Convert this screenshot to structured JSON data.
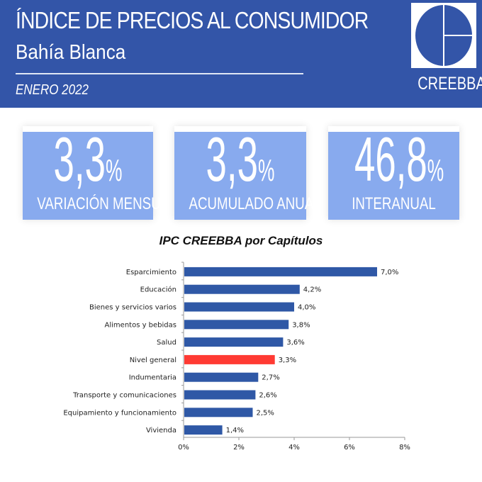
{
  "header": {
    "title": "ÍNDICE DE PRECIOS AL CONSUMIDOR",
    "subtitle": "Bahía Blanca",
    "date": "ENERO 2022",
    "logo_text": "CREEBBA",
    "color": "#3355a8"
  },
  "cards": [
    {
      "value": "3,3",
      "unit": "%",
      "label": "VARIACIÓN MENSUAL"
    },
    {
      "value": "3,3",
      "unit": "%",
      "label": "ACUMULADO ANUAL"
    },
    {
      "value": "46,8",
      "unit": "%",
      "label": "INTERANUAL"
    }
  ],
  "chart_data": {
    "type": "bar",
    "orientation": "horizontal",
    "title": "IPC CREEBBA por Capítulos",
    "categories": [
      "Esparcimiento",
      "Educación",
      "Bienes y servicios varios",
      "Alimentos y bebidas",
      "Salud",
      "Nivel general",
      "Indumentaria",
      "Transporte y comunicaciones",
      "Equipamiento y funcionamiento",
      "Vivienda"
    ],
    "values": [
      7.0,
      4.2,
      4.0,
      3.8,
      3.6,
      3.3,
      2.7,
      2.6,
      2.5,
      1.4
    ],
    "data_labels": [
      "7,0%",
      "4,2%",
      "4,0%",
      "3,8%",
      "3,6%",
      "3,3%",
      "2,7%",
      "2,6%",
      "2,5%",
      "1,4%"
    ],
    "xlim": [
      0,
      8
    ],
    "xticks": [
      "0%",
      "2%",
      "4%",
      "6%",
      "8%"
    ],
    "grid": false,
    "colors": {
      "default": "#2f58a6",
      "highlight": "#ff3a33"
    },
    "highlight": "Nivel general"
  }
}
